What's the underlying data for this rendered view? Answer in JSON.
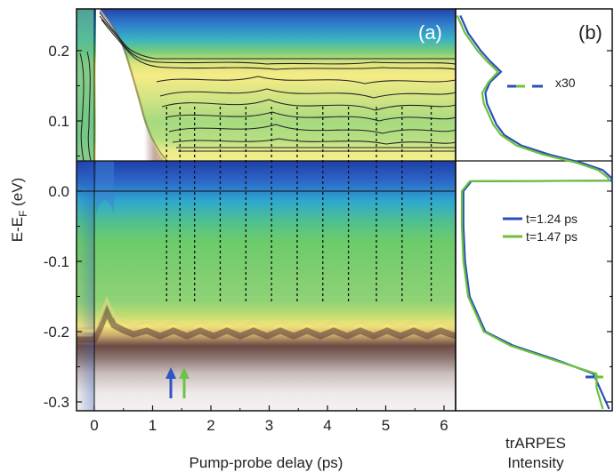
{
  "figure": {
    "panel_a_label": "(a)",
    "panel_b_label": "(b)",
    "x_axis_label": "Pump-probe delay (ps)",
    "y_axis_label": "E-E",
    "y_axis_label_sub": "F",
    "y_axis_label_unit": " (eV)",
    "b_axis_label_line1": "trARPES",
    "b_axis_label_line2": "Intensity",
    "x30_label": "x30",
    "colors": {
      "blue_line": "#2b4fb8",
      "green_line": "#6bc23a",
      "arrow_blue": "#2f54c4",
      "arrow_green": "#6cc24a"
    }
  },
  "chart_data": [
    {
      "type": "heatmap",
      "panel": "(a)",
      "xlabel": "Pump-probe delay (ps)",
      "ylabel": "E-EF (eV)",
      "xlim": [
        -0.3,
        6.0
      ],
      "ylim": [
        -0.31,
        0.25
      ],
      "x_ticks": [
        "0",
        "1",
        "2",
        "3",
        "4",
        "5",
        "6"
      ],
      "y_ticks": [
        "0.2",
        "0.1",
        "0.0",
        "-0.1",
        "-0.2",
        "-0.3"
      ],
      "upper_inset_energy_range_eV": [
        0.05,
        0.25
      ],
      "dashed_line_delays_ps": [
        1.24,
        1.47,
        1.72,
        2.16,
        2.6,
        3.04,
        3.48,
        3.92,
        4.36,
        4.84,
        5.28,
        5.78
      ],
      "arrows": [
        {
          "delay_ps": 1.24,
          "color": "blue"
        },
        {
          "delay_ps": 1.47,
          "color": "green"
        }
      ]
    },
    {
      "type": "line",
      "panel": "(b)",
      "xlabel": "trARPES Intensity",
      "ylabel": "E-EF (eV)",
      "legend_placement": "middle-right",
      "annotation": "x30",
      "series": [
        {
          "name": "t=1.24 ps",
          "color": "#2b4fb8",
          "points": [
            [
              0.03,
              0.25
            ],
            [
              0.08,
              0.225
            ],
            [
              0.16,
              0.2
            ],
            [
              0.22,
              0.185
            ],
            [
              0.29,
              0.17
            ],
            [
              0.22,
              0.155
            ],
            [
              0.19,
              0.14
            ],
            [
              0.2,
              0.125
            ],
            [
              0.23,
              0.11
            ],
            [
              0.26,
              0.095
            ],
            [
              0.31,
              0.08
            ],
            [
              0.42,
              0.065
            ],
            [
              0.6,
              0.052
            ],
            [
              0.81,
              0.04
            ],
            [
              0.94,
              0.03
            ],
            [
              0.99,
              0.02
            ],
            [
              1.0,
              0.015
            ],
            [
              0.1,
              0.014
            ],
            [
              0.05,
              0.0
            ],
            [
              0.05,
              -0.05
            ],
            [
              0.06,
              -0.1
            ],
            [
              0.09,
              -0.15
            ],
            [
              0.19,
              -0.2
            ],
            [
              0.37,
              -0.22
            ],
            [
              0.64,
              -0.24
            ],
            [
              0.88,
              -0.26
            ],
            [
              0.92,
              -0.28
            ],
            [
              0.98,
              -0.31
            ]
          ]
        },
        {
          "name": "t=1.47 ps",
          "color": "#6bc23a",
          "points": [
            [
              0.01,
              0.25
            ],
            [
              0.06,
              0.225
            ],
            [
              0.14,
              0.2
            ],
            [
              0.2,
              0.185
            ],
            [
              0.27,
              0.17
            ],
            [
              0.21,
              0.155
            ],
            [
              0.17,
              0.14
            ],
            [
              0.18,
              0.125
            ],
            [
              0.21,
              0.11
            ],
            [
              0.24,
              0.095
            ],
            [
              0.29,
              0.08
            ],
            [
              0.39,
              0.065
            ],
            [
              0.56,
              0.052
            ],
            [
              0.78,
              0.04
            ],
            [
              0.91,
              0.03
            ],
            [
              0.97,
              0.02
            ],
            [
              0.98,
              0.015
            ],
            [
              0.09,
              0.014
            ],
            [
              0.04,
              0.0
            ],
            [
              0.04,
              -0.05
            ],
            [
              0.05,
              -0.1
            ],
            [
              0.08,
              -0.15
            ],
            [
              0.18,
              -0.2
            ],
            [
              0.35,
              -0.22
            ],
            [
              0.62,
              -0.24
            ],
            [
              0.9,
              -0.26
            ],
            [
              0.9,
              -0.28
            ],
            [
              0.94,
              -0.31
            ]
          ]
        }
      ]
    }
  ]
}
